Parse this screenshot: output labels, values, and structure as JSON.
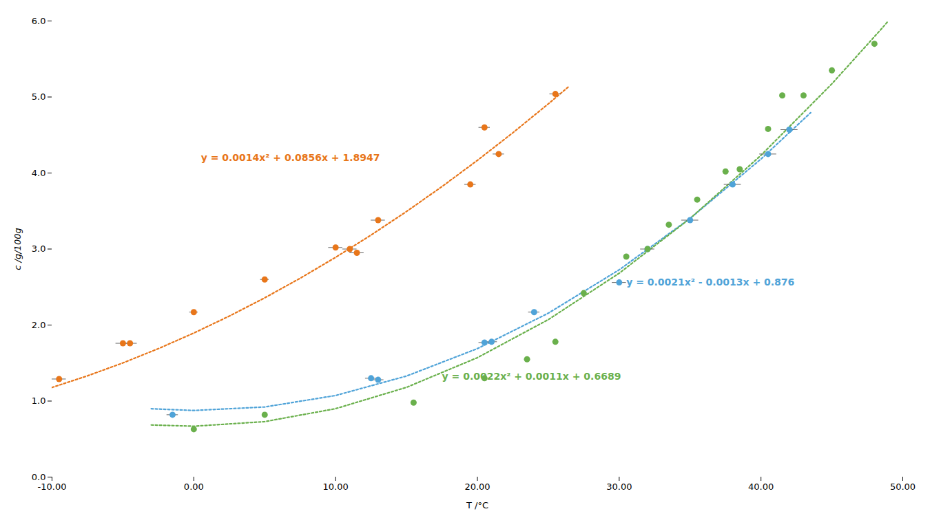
{
  "chart_data": {
    "type": "scatter",
    "xlabel": "T /°C",
    "ylabel": "c /g/100g",
    "xlim": [
      -10.0,
      50.0
    ],
    "ylim": [
      0.0,
      6.0
    ],
    "xticks": [
      {
        "value": -10.0,
        "label": "-10.00"
      },
      {
        "value": 0.0,
        "label": "0.00"
      },
      {
        "value": 10.0,
        "label": "10.00"
      },
      {
        "value": 20.0,
        "label": "20.00"
      },
      {
        "value": 30.0,
        "label": "30.00"
      },
      {
        "value": 40.0,
        "label": "40.00"
      },
      {
        "value": 50.0,
        "label": "50.00"
      }
    ],
    "yticks": [
      {
        "value": 0.0,
        "label": "0.0"
      },
      {
        "value": 1.0,
        "label": "1.0"
      },
      {
        "value": 2.0,
        "label": "2.0"
      },
      {
        "value": 3.0,
        "label": "3.0"
      },
      {
        "value": 4.0,
        "label": "4.0"
      },
      {
        "value": 5.0,
        "label": "5.0"
      },
      {
        "value": 6.0,
        "label": "6.0"
      }
    ],
    "grid": false,
    "series": [
      {
        "type": "line",
        "line_style": "dotted",
        "color": "#E8761A",
        "x": [
          -10,
          -7.5,
          -5,
          -2.5,
          0,
          2.5,
          5,
          7.5,
          10,
          12.5,
          15,
          17.5,
          20,
          22.5,
          25,
          26.5
        ],
        "y": [
          1.1787,
          1.33145,
          1.5017,
          1.68945,
          1.8947,
          2.11745,
          2.3577,
          2.61545,
          2.8907,
          3.18345,
          3.4937,
          3.82145,
          4.1667,
          4.52945,
          4.9097,
          5.14625
        ]
      },
      {
        "type": "line",
        "line_style": "dotted",
        "color": "#4FA3D8",
        "x": [
          -3,
          0,
          5,
          10,
          15,
          20,
          25,
          30,
          35,
          40,
          43.5
        ],
        "y": [
          0.8988,
          0.876,
          0.922,
          1.073,
          1.329,
          1.69,
          2.156,
          2.727,
          3.403,
          4.184,
          4.793175
        ]
      },
      {
        "type": "line",
        "line_style": "dotted",
        "color": "#6AB04C",
        "x": [
          -3,
          0,
          5,
          10,
          15,
          20,
          25,
          30,
          35,
          40,
          45,
          48.5,
          48.9
        ],
        "y": [
          0.6854,
          0.6689,
          0.7294,
          0.8999,
          1.1804,
          1.5709,
          2.0714,
          2.6819,
          3.4024,
          4.2329,
          5.1734,
          5.8972,
          5.983352
        ]
      },
      {
        "type": "scatter",
        "marker": "circle",
        "color": "#E8761A",
        "x": [
          -9.5,
          -5.0,
          -4.5,
          0.0,
          5.0,
          10.0,
          11.0,
          11.5,
          13.0,
          19.5,
          20.5,
          21.5,
          25.5
        ],
        "y": [
          1.29,
          1.76,
          1.76,
          2.17,
          2.6,
          3.02,
          3.0,
          2.95,
          3.38,
          3.85,
          4.6,
          4.25,
          5.04
        ],
        "xerr": [
          0.5,
          0.5,
          0.5,
          0.3,
          0.3,
          0.5,
          0.5,
          0.5,
          0.5,
          0.4,
          0.4,
          0.4,
          0.4
        ]
      },
      {
        "type": "scatter",
        "marker": "circle",
        "color": "#4FA3D8",
        "x": [
          -1.5,
          12.5,
          13.0,
          20.5,
          21.0,
          24.0,
          30.0,
          32.0,
          35.0,
          38.0,
          40.5,
          42.0
        ],
        "y": [
          0.82,
          1.3,
          1.28,
          1.77,
          1.78,
          2.17,
          2.56,
          3.0,
          3.38,
          3.85,
          4.25,
          4.57
        ],
        "xerr": [
          0.4,
          0.4,
          0.4,
          0.4,
          0.4,
          0.4,
          0.5,
          0.5,
          0.6,
          0.6,
          0.6,
          0.6
        ]
      },
      {
        "type": "scatter",
        "marker": "circle",
        "color": "#6AB04C",
        "x": [
          0.0,
          5.0,
          15.5,
          20.5,
          23.5,
          25.5,
          27.5,
          30.5,
          32.0,
          33.5,
          35.5,
          37.5,
          38.5,
          40.5,
          41.5,
          43.0,
          45.0,
          48.0
        ],
        "y": [
          0.63,
          0.82,
          0.98,
          1.3,
          1.55,
          1.78,
          2.42,
          2.9,
          3.0,
          3.32,
          3.65,
          4.02,
          4.05,
          4.58,
          5.02,
          5.02,
          5.35,
          5.7
        ]
      }
    ],
    "annotations": [
      {
        "text": "y = 0.0014x² + 0.0856x + 1.8947",
        "x": 0.5,
        "y": 4.2,
        "color": "#E8761A"
      },
      {
        "text": "y = 0.0021x² - 0.0013x + 0.876",
        "x": 30.5,
        "y": 2.56,
        "color": "#4FA3D8"
      },
      {
        "text": "y = 0.0022x² + 0.0011x + 0.6689",
        "x": 17.5,
        "y": 1.32,
        "color": "#6AB04C"
      }
    ]
  }
}
